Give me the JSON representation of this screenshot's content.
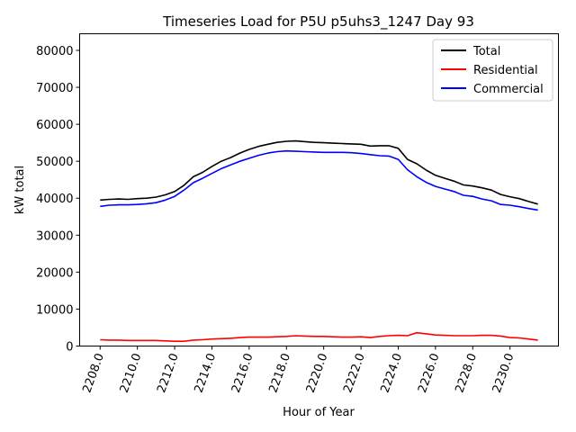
{
  "chart_data": {
    "type": "line",
    "title": "Timeseries Load for P5U p5uhs3_1247  Day 93",
    "xlabel": "Hour of Year",
    "ylabel": "kW total",
    "xlim": [
      2206.9,
      2232.6
    ],
    "ylim": [
      0,
      84500
    ],
    "xticks": [
      2208,
      2210,
      2212,
      2214,
      2216,
      2218,
      2220,
      2222,
      2224,
      2226,
      2228,
      2230
    ],
    "xtick_labels": [
      "2208.0",
      "2210.0",
      "2212.0",
      "2214.0",
      "2216.0",
      "2218.0",
      "2220.0",
      "2222.0",
      "2224.0",
      "2226.0",
      "2228.0",
      "2230.0"
    ],
    "yticks": [
      0,
      10000,
      20000,
      30000,
      40000,
      50000,
      60000,
      70000,
      80000
    ],
    "ytick_labels": [
      "0",
      "10000",
      "20000",
      "30000",
      "40000",
      "50000",
      "60000",
      "70000",
      "80000"
    ],
    "legend_position": "top-right",
    "grid": false,
    "x": [
      2208.0,
      2208.5,
      2209.0,
      2209.5,
      2210.0,
      2210.5,
      2211.0,
      2211.5,
      2212.0,
      2212.5,
      2213.0,
      2213.5,
      2214.0,
      2214.5,
      2215.0,
      2215.5,
      2216.0,
      2216.5,
      2217.0,
      2217.5,
      2218.0,
      2218.5,
      2219.0,
      2219.5,
      2220.0,
      2220.5,
      2221.0,
      2221.5,
      2222.0,
      2222.5,
      2223.0,
      2223.5,
      2224.0,
      2224.5,
      2225.0,
      2225.5,
      2226.0,
      2226.5,
      2227.0,
      2227.5,
      2228.0,
      2228.5,
      2229.0,
      2229.5,
      2230.0,
      2230.5,
      2231.0,
      2231.5
    ],
    "series": [
      {
        "name": "Total",
        "color": "#000000",
        "values": [
          39500,
          39700,
          39800,
          39700,
          39900,
          40000,
          40300,
          40900,
          41800,
          43500,
          45800,
          47000,
          48600,
          50000,
          51000,
          52200,
          53200,
          54000,
          54600,
          55100,
          55400,
          55500,
          55300,
          55100,
          55000,
          54900,
          54800,
          54700,
          54600,
          54100,
          54200,
          54200,
          53500,
          50500,
          49300,
          47600,
          46200,
          45400,
          44600,
          43600,
          43300,
          42800,
          42200,
          41000,
          40400,
          39900,
          39100,
          38400
        ]
      },
      {
        "name": "Residential",
        "color": "#ff0000",
        "values": [
          1700,
          1600,
          1600,
          1500,
          1500,
          1500,
          1500,
          1400,
          1300,
          1300,
          1600,
          1700,
          1900,
          2000,
          2100,
          2300,
          2400,
          2400,
          2400,
          2500,
          2600,
          2800,
          2700,
          2600,
          2600,
          2500,
          2400,
          2400,
          2500,
          2300,
          2600,
          2800,
          2900,
          2800,
          3600,
          3300,
          3000,
          2900,
          2800,
          2800,
          2800,
          2900,
          2900,
          2700,
          2300,
          2200,
          1900,
          1600
        ]
      },
      {
        "name": "Commercial",
        "color": "#0000ff",
        "values": [
          37800,
          38100,
          38200,
          38200,
          38300,
          38500,
          38800,
          39500,
          40500,
          42200,
          44200,
          45400,
          46700,
          48000,
          49000,
          50000,
          50800,
          51600,
          52200,
          52600,
          52800,
          52700,
          52600,
          52500,
          52400,
          52400,
          52400,
          52300,
          52100,
          51800,
          51500,
          51400,
          50500,
          47700,
          45800,
          44300,
          43200,
          42500,
          41800,
          40800,
          40500,
          39800,
          39300,
          38300,
          38100,
          37700,
          37200,
          36800
        ]
      }
    ]
  }
}
